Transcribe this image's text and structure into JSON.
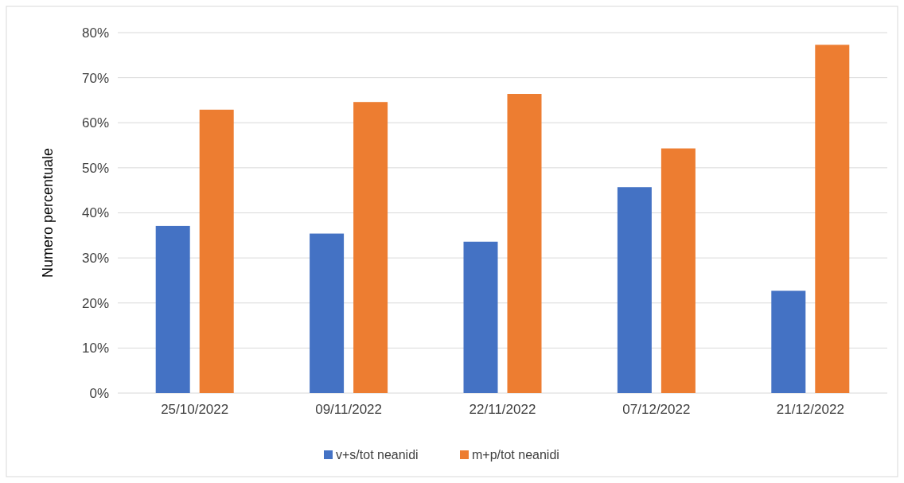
{
  "chart_data": {
    "type": "bar",
    "ylabel": "Numero percentuale",
    "categories": [
      "25/10/2022",
      "09/11/2022",
      "22/11/2022",
      "07/12/2022",
      "21/12/2022"
    ],
    "series": [
      {
        "name": "v+s/tot neanidi",
        "color": "#4472c4",
        "values": [
          37.1,
          35.4,
          33.6,
          45.7,
          22.7
        ]
      },
      {
        "name": "m+p/tot neanidi",
        "color": "#ed7d31",
        "values": [
          62.9,
          64.6,
          66.4,
          54.3,
          77.3
        ]
      }
    ],
    "ylim": [
      0,
      80
    ],
    "yticks": [
      {
        "value": 0,
        "label": "0%"
      },
      {
        "value": 10,
        "label": "10%"
      },
      {
        "value": 20,
        "label": "20%"
      },
      {
        "value": 30,
        "label": "30%"
      },
      {
        "value": 40,
        "label": "40%"
      },
      {
        "value": 50,
        "label": "50%"
      },
      {
        "value": 60,
        "label": "60%"
      },
      {
        "value": 70,
        "label": "70%"
      },
      {
        "value": 80,
        "label": "80%"
      }
    ],
    "grid": "y",
    "legend": "bottom"
  }
}
